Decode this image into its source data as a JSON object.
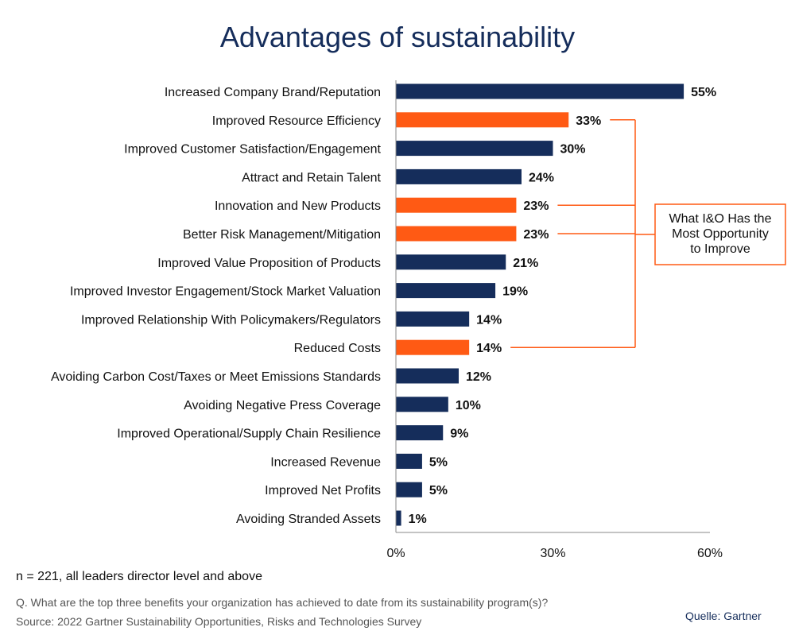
{
  "chart_data": {
    "type": "bar",
    "orientation": "horizontal",
    "title": "Advantages of sustainability",
    "categories": [
      "Increased Company Brand/Reputation",
      "Improved Resource Efficiency",
      "Improved Customer Satisfaction/Engagement",
      "Attract and Retain Talent",
      "Innovation and New Products",
      "Better Risk Management/Mitigation",
      "Improved Value Proposition of Products",
      "Improved Investor Engagement/Stock Market Valuation",
      "Improved Relationship With Policymakers/Regulators",
      "Reduced Costs",
      "Avoiding Carbon Cost/Taxes or Meet Emissions Standards",
      "Avoiding Negative Press Coverage",
      "Improved Operational/Supply Chain Resilience",
      "Increased Revenue",
      "Improved Net Profits",
      "Avoiding Stranded Assets"
    ],
    "values": [
      55,
      33,
      30,
      24,
      23,
      23,
      21,
      19,
      14,
      14,
      12,
      10,
      9,
      5,
      5,
      1
    ],
    "value_labels": [
      "55%",
      "33%",
      "30%",
      "24%",
      "23%",
      "23%",
      "21%",
      "19%",
      "14%",
      "14%",
      "12%",
      "10%",
      "9%",
      "5%",
      "5%",
      "1%"
    ],
    "highlighted": [
      false,
      true,
      false,
      false,
      true,
      true,
      false,
      false,
      false,
      true,
      false,
      false,
      false,
      false,
      false,
      false
    ],
    "xlim": [
      0,
      60
    ],
    "xticks": [
      0,
      30,
      60
    ],
    "xtick_labels": [
      "0%",
      "30%",
      "60%"
    ],
    "xlabel": "",
    "ylabel": "",
    "annotation": [
      "What I&O Has the",
      "Most Opportunity",
      "to Improve"
    ]
  },
  "colors": {
    "bar": "#152d5b",
    "highlight": "#ff5a14",
    "title": "#152d5b"
  },
  "footer": {
    "sample": "n = 221, all leaders director level and above",
    "question": "Q. What are the top three benefits your organization has achieved to date from its sustainability program(s)?",
    "source": "Source: 2022 Gartner Sustainability Opportunities, Risks and Technologies Survey",
    "credit": "Quelle: Gartner"
  }
}
